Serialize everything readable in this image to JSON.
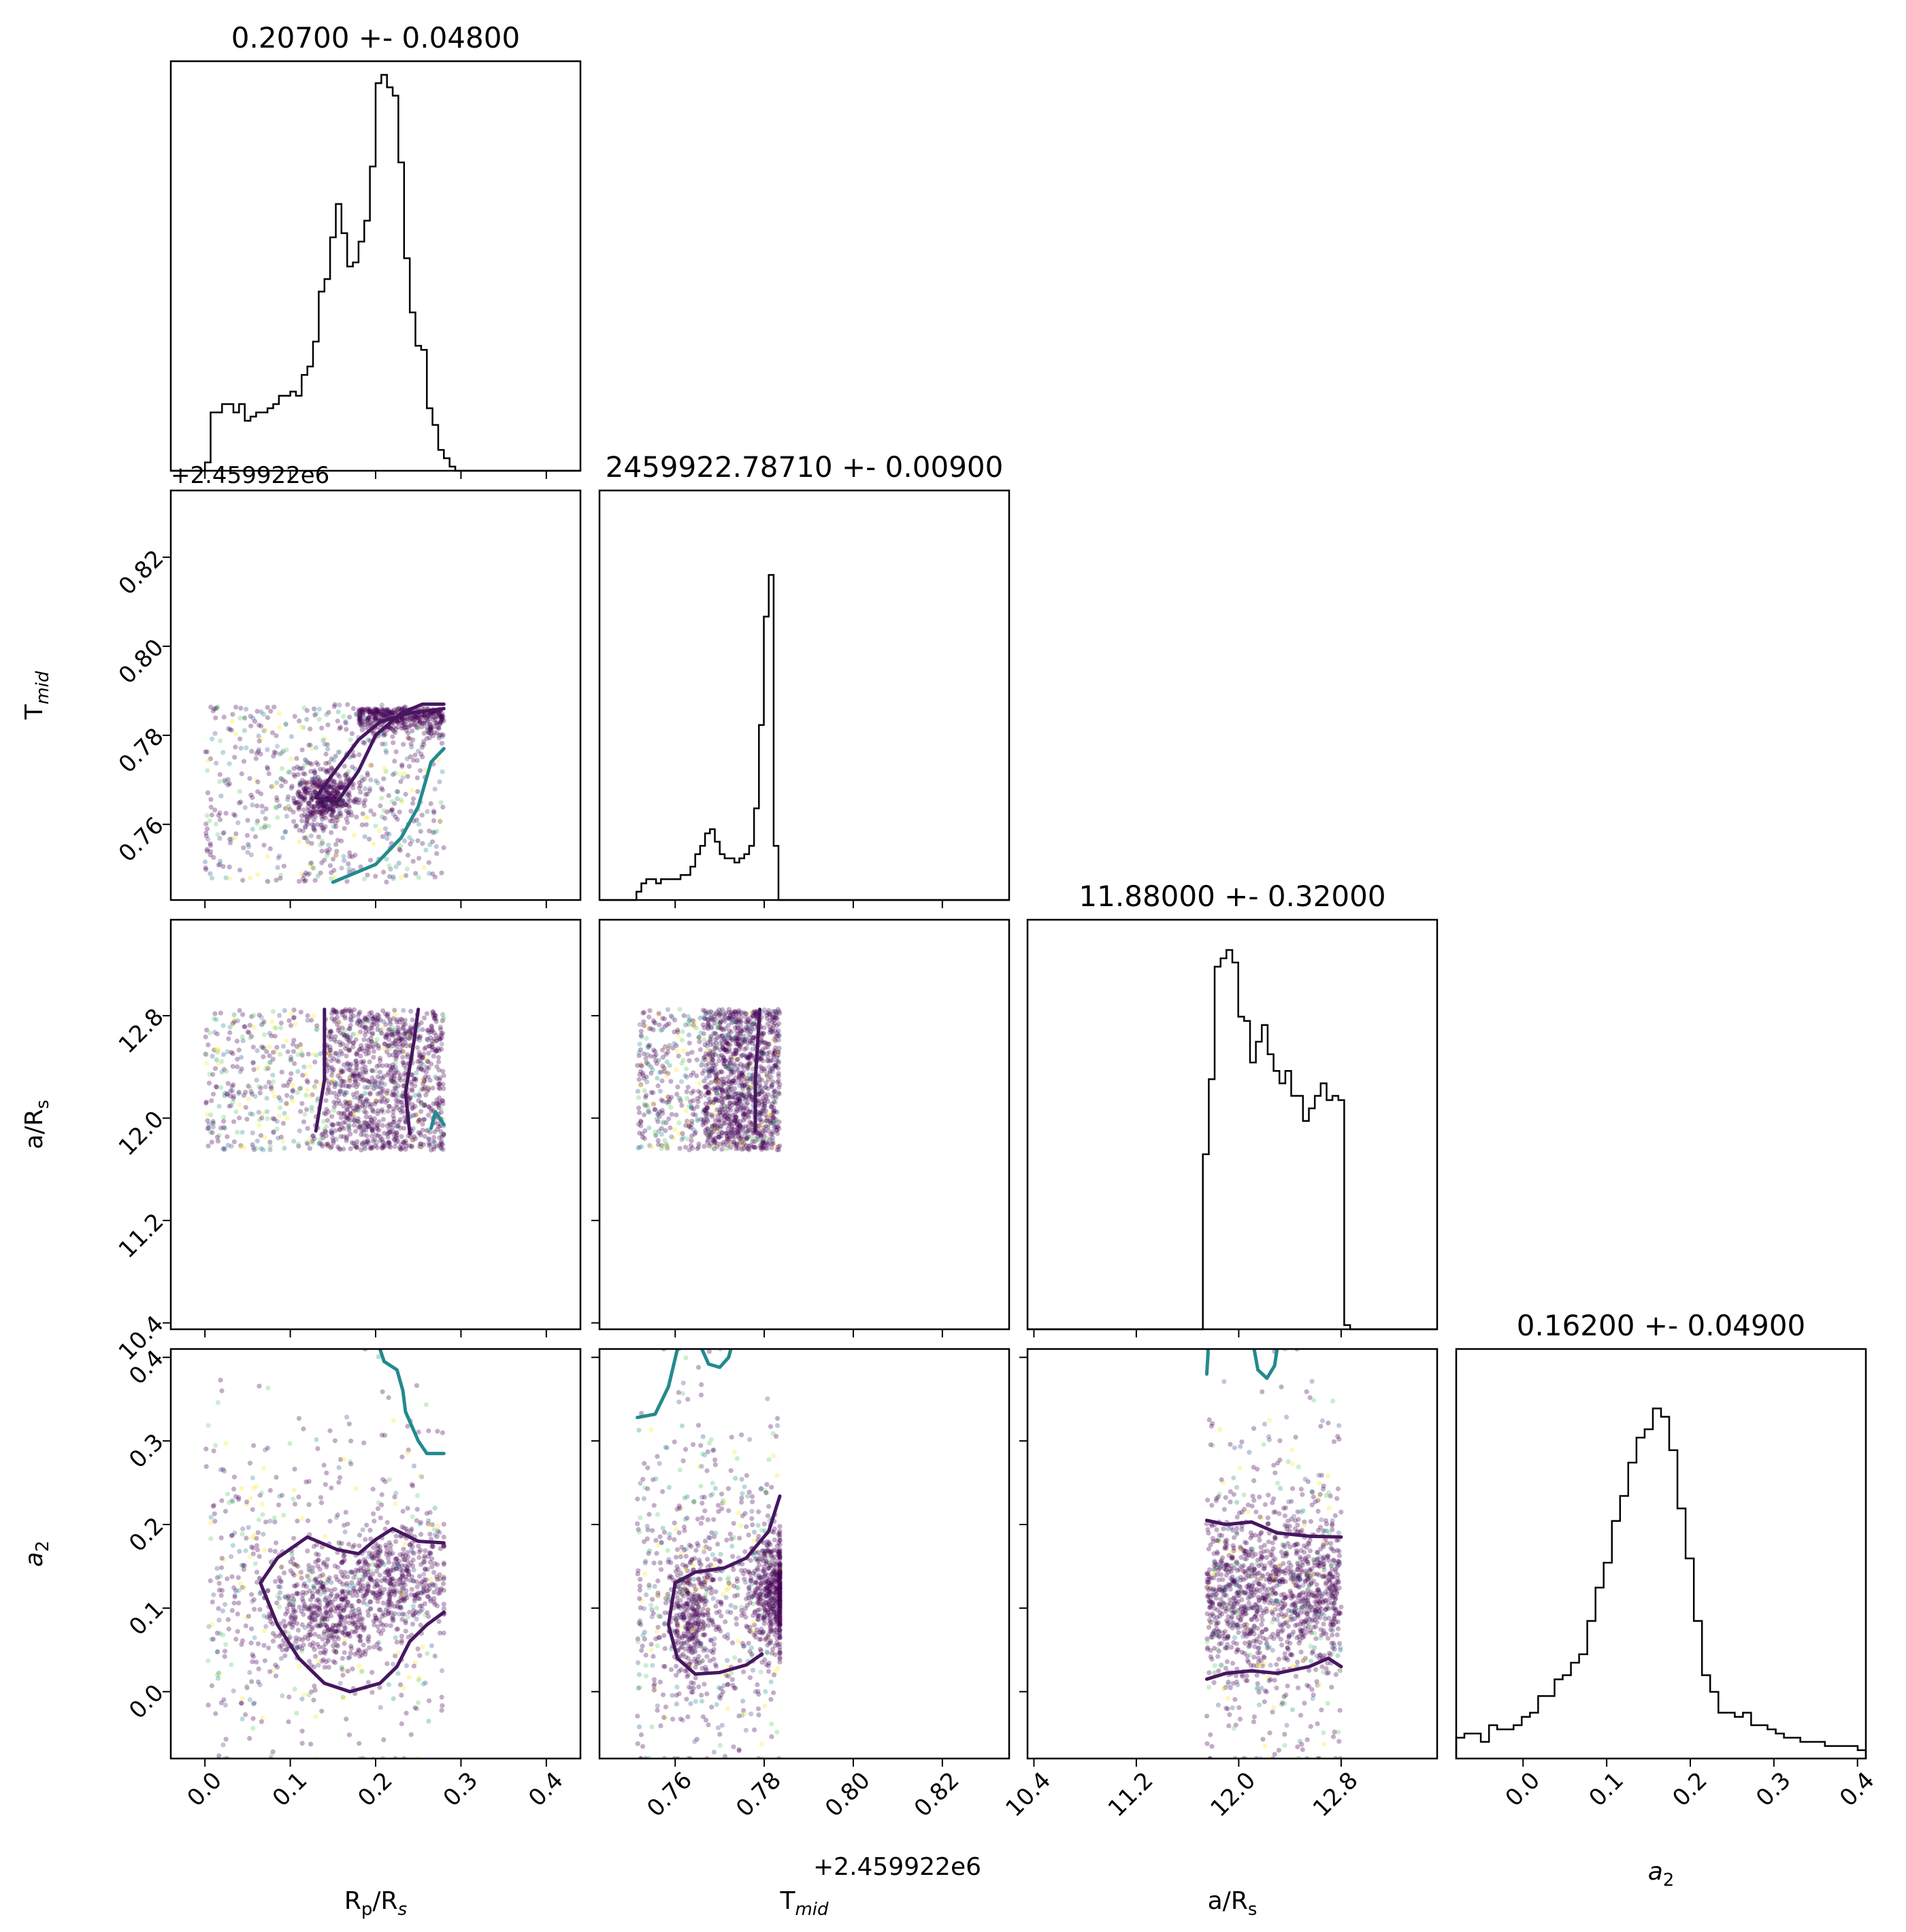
{
  "chart_data": {
    "type": "corner",
    "parameters": [
      {
        "name": "R_p/R_s",
        "label": "R",
        "label_sub": "p",
        "label_tail": "/R",
        "label_tail_sub": "s",
        "title": "0.20700 +- 0.04800",
        "range": [
          -0.04,
          0.44
        ],
        "ticks": [
          {
            "v": 0.0,
            "label": "0.0"
          },
          {
            "v": 0.1,
            "label": "0.1"
          },
          {
            "v": 0.2,
            "label": "0.2"
          },
          {
            "v": 0.3,
            "label": "0.3"
          },
          {
            "v": 0.4,
            "label": "0.4"
          }
        ]
      },
      {
        "name": "T_mid",
        "label": "T",
        "label_sub": "mid",
        "label_tail": "",
        "label_tail_sub": "",
        "title": "2459922.78710 +- 0.00900",
        "offset_label": "+2.459922e6",
        "range": [
          0.743,
          0.835
        ],
        "ticks": [
          {
            "v": 0.76,
            "label": "0.76"
          },
          {
            "v": 0.78,
            "label": "0.78"
          },
          {
            "v": 0.8,
            "label": "0.80"
          },
          {
            "v": 0.82,
            "label": "0.82"
          }
        ]
      },
      {
        "name": "a/R_s",
        "label": "a/R",
        "label_sub": "s",
        "label_tail": "",
        "label_tail_sub": "",
        "title": "11.88000 +- 0.32000",
        "range": [
          10.35,
          13.55
        ],
        "ticks": [
          {
            "v": 10.4,
            "label": "10.4"
          },
          {
            "v": 11.2,
            "label": "11.2"
          },
          {
            "v": 12.0,
            "label": "12.0"
          },
          {
            "v": 12.8,
            "label": "12.8"
          }
        ]
      },
      {
        "name": "a_2",
        "label": "a",
        "label_sub": "2",
        "label_tail": "",
        "label_tail_sub": "",
        "title": "0.16200 +- 0.04900",
        "range": [
          -0.08,
          0.41
        ],
        "ticks": [
          {
            "v": 0.0,
            "label": "0.0"
          },
          {
            "v": 0.1,
            "label": "0.1"
          },
          {
            "v": 0.2,
            "label": "0.2"
          },
          {
            "v": 0.3,
            "label": "0.3"
          },
          {
            "v": 0.4,
            "label": "0.4"
          }
        ]
      }
    ],
    "histograms": [
      {
        "param": 0,
        "heights": [
          0.02,
          0.14,
          0.14,
          0.16,
          0.16,
          0.14,
          0.16,
          0.12,
          0.13,
          0.14,
          0.14,
          0.15,
          0.16,
          0.18,
          0.18,
          0.19,
          0.18,
          0.23,
          0.25,
          0.31,
          0.43,
          0.46,
          0.56,
          0.64,
          0.57,
          0.49,
          0.5,
          0.55,
          0.6,
          0.73,
          0.93,
          0.95,
          0.92,
          0.9,
          0.74,
          0.51,
          0.38,
          0.3,
          0.29,
          0.15,
          0.11,
          0.05,
          0.03,
          0.01,
          0.0
        ]
      },
      {
        "param": 1,
        "heights": [
          0.02,
          0.04,
          0.05,
          0.05,
          0.04,
          0.05,
          0.05,
          0.05,
          0.05,
          0.06,
          0.06,
          0.08,
          0.11,
          0.13,
          0.16,
          0.17,
          0.14,
          0.11,
          0.1,
          0.1,
          0.09,
          0.1,
          0.11,
          0.13,
          0.22,
          0.42,
          0.68,
          0.78,
          0.13,
          0.0
        ]
      },
      {
        "param": 2,
        "heights": [
          0.42,
          0.6,
          0.87,
          0.89,
          0.91,
          0.88,
          0.75,
          0.74,
          0.64,
          0.69,
          0.73,
          0.66,
          0.62,
          0.59,
          0.62,
          0.56,
          0.56,
          0.5,
          0.53,
          0.56,
          0.59,
          0.55,
          0.56,
          0.55,
          0.01
        ]
      },
      {
        "param": 3,
        "heights": [
          0.05,
          0.06,
          0.06,
          0.04,
          0.08,
          0.07,
          0.07,
          0.08,
          0.1,
          0.11,
          0.15,
          0.15,
          0.19,
          0.2,
          0.23,
          0.25,
          0.33,
          0.41,
          0.47,
          0.57,
          0.63,
          0.71,
          0.77,
          0.79,
          0.84,
          0.82,
          0.74,
          0.6,
          0.48,
          0.33,
          0.2,
          0.16,
          0.11,
          0.11,
          0.1,
          0.11,
          0.08,
          0.08,
          0.07,
          0.06,
          0.05,
          0.05,
          0.04,
          0.04,
          0.04,
          0.03,
          0.03,
          0.03,
          0.03,
          0.02
        ]
      }
    ],
    "scatter_colormap": [
      "#440154",
      "#3b528b",
      "#21918c",
      "#5ec962",
      "#fde725"
    ],
    "contour_colors": [
      "#46175f",
      "#238a8d"
    ],
    "contours": [
      {
        "x": 0,
        "y": 1,
        "color": 0,
        "path": [
          [
            0.13,
            0.766
          ],
          [
            0.155,
            0.765
          ],
          [
            0.18,
            0.772
          ],
          [
            0.2,
            0.78
          ],
          [
            0.23,
            0.785
          ],
          [
            0.255,
            0.787
          ],
          [
            0.28,
            0.787
          ]
        ]
      },
      {
        "x": 0,
        "y": 1,
        "color": 0,
        "path": [
          [
            0.28,
            0.786
          ],
          [
            0.24,
            0.785
          ],
          [
            0.205,
            0.783
          ],
          [
            0.18,
            0.779
          ],
          [
            0.145,
            0.77
          ],
          [
            0.13,
            0.766
          ]
        ]
      },
      {
        "x": 0,
        "y": 1,
        "color": 1,
        "path": [
          [
            0.15,
            0.747
          ],
          [
            0.2,
            0.751
          ],
          [
            0.23,
            0.757
          ],
          [
            0.25,
            0.764
          ],
          [
            0.265,
            0.774
          ],
          [
            0.28,
            0.777
          ]
        ]
      },
      {
        "x": 0,
        "y": 2,
        "color": 0,
        "path": [
          [
            0.13,
            11.9
          ],
          [
            0.14,
            12.3
          ],
          [
            0.14,
            12.75
          ],
          [
            0.14,
            12.85
          ]
        ]
      },
      {
        "x": 0,
        "y": 2,
        "color": 0,
        "path": [
          [
            0.24,
            11.88
          ],
          [
            0.235,
            12.2
          ],
          [
            0.245,
            12.6
          ],
          [
            0.25,
            12.85
          ]
        ]
      },
      {
        "x": 0,
        "y": 2,
        "color": 1,
        "path": [
          [
            0.265,
            11.92
          ],
          [
            0.27,
            12.05
          ],
          [
            0.28,
            11.95
          ]
        ]
      },
      {
        "x": 1,
        "y": 2,
        "color": 0,
        "path": [
          [
            0.778,
            11.9
          ],
          [
            0.778,
            12.3
          ],
          [
            0.779,
            12.85
          ]
        ]
      },
      {
        "x": 1,
        "y": 3,
        "color": 1,
        "path": [
          [
            0.7515,
            0.328
          ],
          [
            0.7555,
            0.332
          ],
          [
            0.7585,
            0.365
          ],
          [
            0.7605,
            0.41
          ]
        ]
      },
      {
        "x": 1,
        "y": 3,
        "color": 1,
        "path": [
          [
            0.766,
            0.41
          ],
          [
            0.7675,
            0.392
          ],
          [
            0.77,
            0.388
          ],
          [
            0.772,
            0.4
          ],
          [
            0.7725,
            0.41
          ]
        ]
      },
      {
        "x": 1,
        "y": 3,
        "color": 0,
        "path": [
          [
            0.7795,
            0.045
          ],
          [
            0.776,
            0.032
          ],
          [
            0.77,
            0.023
          ],
          [
            0.7645,
            0.021
          ],
          [
            0.7605,
            0.04
          ],
          [
            0.7585,
            0.08
          ],
          [
            0.76,
            0.13
          ],
          [
            0.7645,
            0.143
          ],
          [
            0.771,
            0.148
          ],
          [
            0.776,
            0.16
          ],
          [
            0.781,
            0.192
          ],
          [
            0.7835,
            0.234
          ]
        ]
      },
      {
        "x": 2,
        "y": 3,
        "color": 1,
        "path": [
          [
            11.75,
            0.38
          ],
          [
            11.76,
            0.405
          ],
          [
            11.76,
            0.41
          ]
        ]
      },
      {
        "x": 2,
        "y": 3,
        "color": 1,
        "path": [
          [
            12.12,
            0.41
          ],
          [
            12.15,
            0.385
          ],
          [
            12.22,
            0.375
          ],
          [
            12.28,
            0.39
          ],
          [
            12.3,
            0.41
          ]
        ]
      },
      {
        "x": 2,
        "y": 3,
        "color": 0,
        "path": [
          [
            11.75,
            0.205
          ],
          [
            11.9,
            0.2
          ],
          [
            12.1,
            0.203
          ],
          [
            12.3,
            0.19
          ],
          [
            12.55,
            0.186
          ],
          [
            12.8,
            0.185
          ]
        ]
      },
      {
        "x": 2,
        "y": 3,
        "color": 0,
        "path": [
          [
            11.75,
            0.015
          ],
          [
            11.9,
            0.022
          ],
          [
            12.1,
            0.025
          ],
          [
            12.3,
            0.022
          ],
          [
            12.55,
            0.03
          ],
          [
            12.7,
            0.04
          ],
          [
            12.8,
            0.03
          ]
        ]
      },
      {
        "x": 0,
        "y": 3,
        "color": 1,
        "path": [
          [
            0.205,
            0.41
          ],
          [
            0.21,
            0.395
          ],
          [
            0.225,
            0.385
          ],
          [
            0.232,
            0.36
          ],
          [
            0.235,
            0.335
          ],
          [
            0.25,
            0.3
          ],
          [
            0.26,
            0.285
          ],
          [
            0.28,
            0.285
          ]
        ]
      },
      {
        "x": 0,
        "y": 3,
        "color": 0,
        "path": [
          [
            0.28,
            0.095
          ],
          [
            0.26,
            0.08
          ],
          [
            0.24,
            0.06
          ],
          [
            0.225,
            0.03
          ],
          [
            0.205,
            0.01
          ],
          [
            0.17,
            0.0
          ],
          [
            0.14,
            0.01
          ],
          [
            0.11,
            0.04
          ],
          [
            0.085,
            0.08
          ],
          [
            0.065,
            0.13
          ],
          [
            0.085,
            0.16
          ],
          [
            0.12,
            0.185
          ],
          [
            0.155,
            0.17
          ],
          [
            0.18,
            0.165
          ],
          [
            0.2,
            0.182
          ],
          [
            0.22,
            0.195
          ],
          [
            0.25,
            0.18
          ],
          [
            0.28,
            0.178
          ]
        ]
      }
    ]
  }
}
